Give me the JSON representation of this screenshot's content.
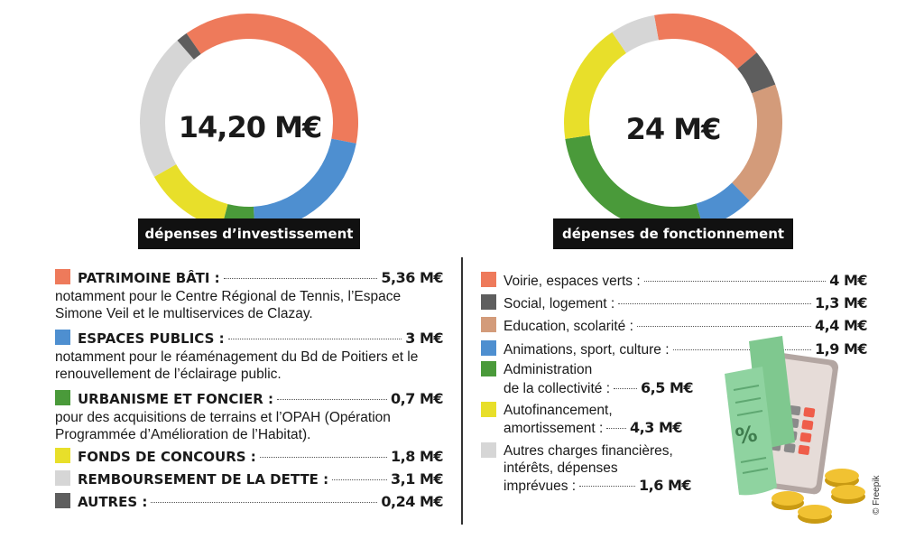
{
  "colors": {
    "orange": "#ee7a5b",
    "blue": "#4e8fd0",
    "green": "#4a9a3a",
    "yellow": "#e8df2a",
    "lightgray": "#d6d6d6",
    "darkgray": "#5e5e5e",
    "tan": "#d39b7a"
  },
  "left": {
    "total": "14,20 M€",
    "label": "dépenses d’investissement",
    "items": [
      {
        "name": "PATRIMOINE BÂTI :",
        "value": "5,36 M€",
        "note": "notamment pour le Centre Régional de Tennis, l’Espace Simone Veil et le multiservices de Clazay."
      },
      {
        "name": "ESPACES PUBLICS :",
        "value": "3 M€",
        "note": "notamment pour le réaménagement du Bd de Poitiers et le renouvellement de l’éclairage public."
      },
      {
        "name": "URBANISME ET FONCIER :",
        "value": "0,7 M€",
        "note": "pour des acquisitions de terrains et l’OPAH (Opération Programmée d’Amélioration de l’Habitat)."
      },
      {
        "name": "FONDS DE CONCOURS :",
        "value": "1,8 M€"
      },
      {
        "name": "REMBOURSEMENT DE LA DETTE :",
        "value": "3,1 M€"
      },
      {
        "name": "AUTRES :",
        "value": "0,24 M€"
      }
    ]
  },
  "right": {
    "total": "24 M€",
    "label": "dépenses de fonctionnement",
    "items": [
      {
        "name": "Voirie, espaces verts :",
        "value": "4 M€"
      },
      {
        "name": "Social, logement :",
        "value": "1,3 M€"
      },
      {
        "name": "Education, scolarité :",
        "value": "4,4 M€"
      },
      {
        "name": "Animations, sport, culture :",
        "value": "1,9 M€"
      },
      {
        "name_line1": "Administration",
        "name_line2": "de la collectivité :",
        "value": "6,5 M€"
      },
      {
        "name_line1": "Autofinancement,",
        "name_line2": "amortissement :",
        "value": "4,3 M€"
      },
      {
        "name_line1": "Autres charges financières,",
        "name_line2": "intérêts, dépenses",
        "name_line3": "imprévues :",
        "value": "1,6 M€"
      }
    ]
  },
  "credit": "© Freepik",
  "chart_data": [
    {
      "type": "pie",
      "categories": [
        "Patrimoine bâti",
        "Espaces publics",
        "Urbanisme et foncier",
        "Fonds de concours",
        "Remboursement de la dette",
        "Autres"
      ],
      "values": [
        5.36,
        3,
        0.7,
        1.8,
        3.1,
        0.24
      ],
      "colors": [
        "#ee7a5b",
        "#4e8fd0",
        "#4a9a3a",
        "#e8df2a",
        "#d6d6d6",
        "#5e5e5e"
      ],
      "title": "dépenses d’investissement",
      "total": "14,20 M€"
    },
    {
      "type": "pie",
      "categories": [
        "Voirie, espaces verts",
        "Social, logement",
        "Education, scolarité",
        "Animations, sport, culture",
        "Administration de la collectivité",
        "Autofinancement, amortissement",
        "Autres charges financières, intérêts, dépenses imprévues"
      ],
      "values": [
        4,
        1.3,
        4.4,
        1.9,
        6.5,
        4.3,
        1.6
      ],
      "colors": [
        "#ee7a5b",
        "#5e5e5e",
        "#d39b7a",
        "#4e8fd0",
        "#4a9a3a",
        "#e8df2a",
        "#d6d6d6"
      ],
      "title": "dépenses de fonctionnement",
      "total": "24 M€"
    }
  ]
}
